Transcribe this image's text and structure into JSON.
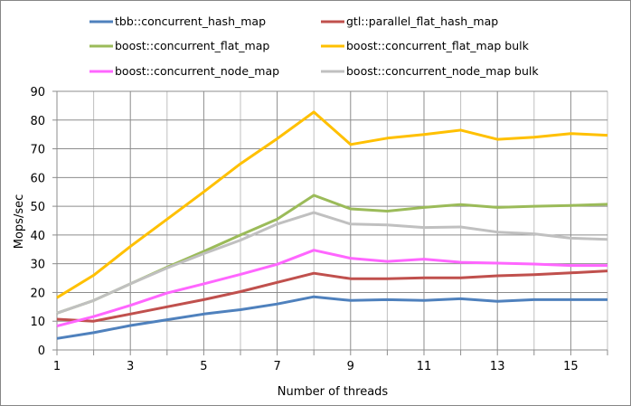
{
  "chart_data": {
    "type": "line",
    "title": "",
    "xlabel": "Number of threads",
    "ylabel": "Mops/sec",
    "ylim": [
      0,
      90
    ],
    "xlim": [
      1,
      16
    ],
    "yticks": [
      0,
      10,
      20,
      30,
      40,
      50,
      60,
      70,
      80,
      90
    ],
    "xticks": [
      1,
      3,
      5,
      7,
      9,
      11,
      13,
      15
    ],
    "grid": true,
    "legend_position": "top",
    "x": [
      1,
      2,
      3,
      4,
      5,
      6,
      7,
      8,
      9,
      10,
      11,
      12,
      13,
      14,
      15,
      16
    ],
    "series": [
      {
        "name": "tbb::concurrent_hash_map",
        "color": "#4f81bd",
        "values": [
          4.0,
          6.0,
          8.5,
          10.5,
          12.5,
          14.0,
          16.0,
          18.5,
          17.2,
          17.5,
          17.2,
          17.8,
          16.9,
          17.5,
          17.5,
          17.5
        ]
      },
      {
        "name": "gtl::parallel_flat_hash_map",
        "color": "#c0504d",
        "values": [
          10.7,
          10.0,
          12.5,
          15.0,
          17.5,
          20.3,
          23.5,
          26.7,
          24.8,
          24.8,
          25.1,
          25.1,
          25.8,
          26.2,
          26.8,
          27.5
        ]
      },
      {
        "name": "boost::concurrent_flat_map",
        "color": "#9bbb59",
        "values": [
          12.8,
          17.2,
          23.0,
          28.8,
          34.3,
          40.0,
          45.5,
          53.8,
          49.1,
          48.3,
          49.6,
          50.6,
          49.6,
          50.0,
          50.3,
          50.7
        ]
      },
      {
        "name": "boost::concurrent_flat_map bulk",
        "color": "#ffc000",
        "values": [
          18.2,
          26.0,
          36.0,
          45.5,
          55.0,
          64.8,
          73.5,
          82.8,
          71.5,
          73.7,
          75.0,
          76.5,
          73.3,
          74.0,
          75.3,
          74.7
        ]
      },
      {
        "name": "boost::concurrent_node_map",
        "color": "#ff66ff",
        "values": [
          8.3,
          11.6,
          15.5,
          19.8,
          23.0,
          26.3,
          29.8,
          34.7,
          31.9,
          30.8,
          31.6,
          30.5,
          30.2,
          29.9,
          29.4,
          29.4
        ]
      },
      {
        "name": "boost::concurrent_node_map bulk",
        "color": "#c0c0c0",
        "values": [
          12.8,
          17.2,
          23.0,
          28.5,
          33.5,
          38.2,
          43.8,
          47.8,
          43.8,
          43.5,
          42.6,
          42.8,
          41.0,
          40.4,
          38.9,
          38.5
        ]
      }
    ]
  }
}
